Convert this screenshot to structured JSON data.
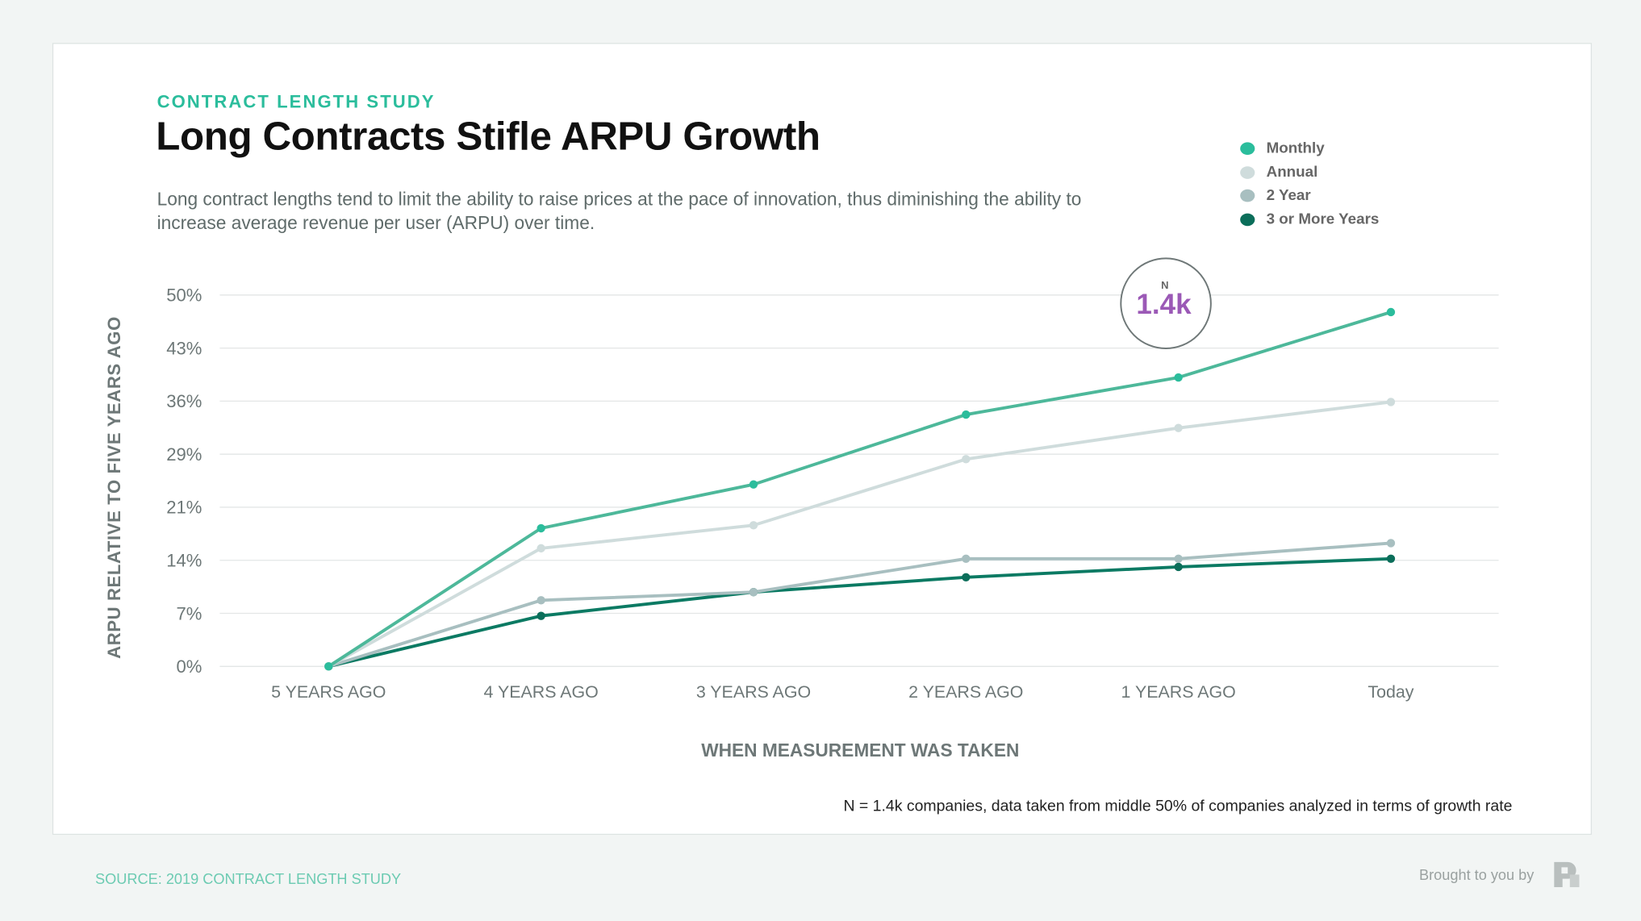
{
  "header": {
    "kicker": "CONTRACT LENGTH STUDY",
    "title": "Long Contracts Stifle ARPU Growth",
    "subtitle": "Long contract lengths tend to limit the ability to raise prices at the pace of innovation, thus diminishing the ability to increase average revenue per user (ARPU) over time."
  },
  "badge": {
    "label": "N",
    "value": "1.4k",
    "color": "#9b59b6"
  },
  "footnote": "N = 1.4k companies, data taken from middle 50% of companies analyzed in terms of growth rate",
  "footer": {
    "source": "SOURCE: 2019 CONTRACT LENGTH STUDY",
    "brought": "Brought to you by"
  },
  "chart_data": {
    "type": "line",
    "xlabel": "WHEN MEASUREMENT WAS TAKEN",
    "ylabel": "ARPU RELATIVE TO FIVE YEARS AGO",
    "categories": [
      "5 YEARS AGO",
      "4 YEARS AGO",
      "3 YEARS AGO",
      "2 YEARS AGO",
      "1 YEARS AGO",
      "Today"
    ],
    "yticks": [
      "0%",
      "7%",
      "14%",
      "21%",
      "29%",
      "36%",
      "43%",
      "50%"
    ],
    "ylim": [
      0,
      50
    ],
    "grid": true,
    "legend": "top-right",
    "series": [
      {
        "name": "Monthly",
        "color": "#4db89a",
        "dot": "#2bbd9c",
        "values": [
          0,
          18.6,
          24.5,
          33.9,
          38.9,
          47.7
        ]
      },
      {
        "name": "Annual",
        "color": "#cfdcdc",
        "dot": "#cfdcdc",
        "values": [
          0,
          15.9,
          19.0,
          27.9,
          32.1,
          35.6
        ]
      },
      {
        "name": "2 Year",
        "color": "#a8bfc0",
        "dot": "#a8bfc0",
        "values": [
          0,
          8.9,
          10.0,
          14.5,
          14.5,
          16.6
        ]
      },
      {
        "name": "3 or More Years",
        "color": "#0b7a63",
        "dot": "#0b6e5a",
        "values": [
          0,
          6.8,
          10.0,
          12.0,
          13.4,
          14.5
        ]
      }
    ]
  }
}
